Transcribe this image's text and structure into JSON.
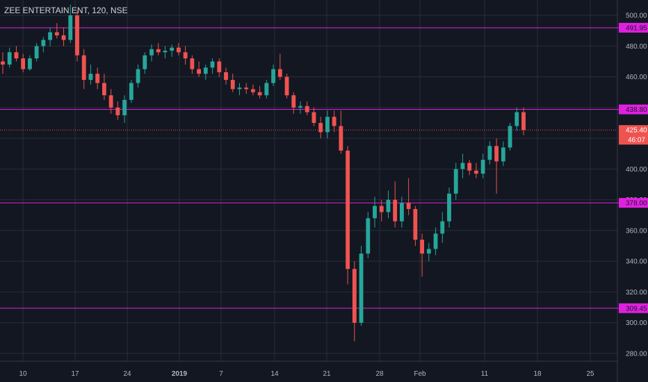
{
  "header": {
    "symbol_line": "ZEE ENTERTAIN ENT, 120, NSE"
  },
  "colors": {
    "background": "#131722",
    "grid": "#2a2e39",
    "up": "#26a69a",
    "down": "#ef5350",
    "level_line": "#e020e0",
    "price_tag_bg": "#ef5350",
    "level_tag_bg": "#e020e0",
    "axis_text": "#b2b5be"
  },
  "chart_data": {
    "type": "candlestick",
    "title": "ZEE ENTERTAIN ENT, 120, NSE",
    "ylim": [
      275,
      510
    ],
    "y_ticks": [
      "280.00",
      "300.00",
      "320.00",
      "340.00",
      "360.00",
      "380.00",
      "400.00",
      "420.00",
      "440.00",
      "460.00",
      "480.00",
      "500.00"
    ],
    "x_ticks": [
      "10",
      "17",
      "24",
      "2019",
      "7",
      "14",
      "21",
      "28",
      "Feb",
      "11",
      "18",
      "25"
    ],
    "levels": [
      {
        "label": "491.95",
        "value": 491.95
      },
      {
        "label": "438.80",
        "value": 438.8
      },
      {
        "label": "378.00",
        "value": 378.0
      },
      {
        "label": "309.45",
        "value": 309.45
      }
    ],
    "last_price": {
      "label": "425.40",
      "value": 425.4
    },
    "countdown_label": "46:07",
    "candles": [
      {
        "x": "Dec 7",
        "open": 470,
        "high": 476,
        "low": 462,
        "close": 468
      },
      {
        "x": "Dec 8",
        "open": 468,
        "high": 479,
        "low": 466,
        "close": 476
      },
      {
        "x": "Dec 9",
        "open": 476,
        "high": 480,
        "low": 470,
        "close": 472
      },
      {
        "x": "Dec 10",
        "open": 472,
        "high": 475,
        "low": 463,
        "close": 465
      },
      {
        "x": "Dec 11",
        "open": 465,
        "high": 474,
        "low": 464,
        "close": 472
      },
      {
        "x": "Dec 12",
        "open": 472,
        "high": 482,
        "low": 470,
        "close": 480
      },
      {
        "x": "Dec 13",
        "open": 480,
        "high": 486,
        "low": 476,
        "close": 484
      },
      {
        "x": "Dec 14",
        "open": 484,
        "high": 492,
        "low": 480,
        "close": 489
      },
      {
        "x": "Dec 15",
        "open": 489,
        "high": 495,
        "low": 485,
        "close": 487
      },
      {
        "x": "Dec 16",
        "open": 487,
        "high": 492,
        "low": 480,
        "close": 484
      },
      {
        "x": "Dec 17",
        "open": 484,
        "high": 507,
        "low": 482,
        "close": 500
      },
      {
        "x": "Dec 18",
        "open": 500,
        "high": 503,
        "low": 470,
        "close": 474
      },
      {
        "x": "Dec 19",
        "open": 474,
        "high": 478,
        "low": 452,
        "close": 458
      },
      {
        "x": "Dec 20",
        "open": 458,
        "high": 468,
        "low": 455,
        "close": 462
      },
      {
        "x": "Dec 21",
        "open": 462,
        "high": 466,
        "low": 452,
        "close": 456
      },
      {
        "x": "Dec 22",
        "open": 456,
        "high": 462,
        "low": 445,
        "close": 448
      },
      {
        "x": "Dec 23",
        "open": 448,
        "high": 452,
        "low": 436,
        "close": 440
      },
      {
        "x": "Dec 24",
        "open": 440,
        "high": 444,
        "low": 432,
        "close": 435
      },
      {
        "x": "Dec 25",
        "open": 435,
        "high": 448,
        "low": 430,
        "close": 445
      },
      {
        "x": "Dec 26",
        "open": 445,
        "high": 458,
        "low": 443,
        "close": 456
      },
      {
        "x": "Dec 27",
        "open": 456,
        "high": 468,
        "low": 453,
        "close": 465
      },
      {
        "x": "Dec 28",
        "open": 465,
        "high": 476,
        "low": 462,
        "close": 474
      },
      {
        "x": "Dec 29",
        "open": 474,
        "high": 481,
        "low": 470,
        "close": 478
      },
      {
        "x": "Dec 30",
        "open": 478,
        "high": 482,
        "low": 474,
        "close": 476
      },
      {
        "x": "Dec 31",
        "open": 476,
        "high": 480,
        "low": 472,
        "close": 477
      },
      {
        "x": "Jan 1",
        "open": 477,
        "high": 481,
        "low": 473,
        "close": 479
      },
      {
        "x": "Jan 2",
        "open": 479,
        "high": 482,
        "low": 474,
        "close": 476
      },
      {
        "x": "Jan 3",
        "open": 476,
        "high": 480,
        "low": 468,
        "close": 472
      },
      {
        "x": "Jan 4",
        "open": 472,
        "high": 474,
        "low": 462,
        "close": 465
      },
      {
        "x": "Jan 5",
        "open": 465,
        "high": 470,
        "low": 460,
        "close": 462
      },
      {
        "x": "Jan 6",
        "open": 462,
        "high": 468,
        "low": 458,
        "close": 466
      },
      {
        "x": "Jan 7",
        "open": 466,
        "high": 472,
        "low": 462,
        "close": 470
      },
      {
        "x": "Jan 8",
        "open": 470,
        "high": 472,
        "low": 460,
        "close": 463
      },
      {
        "x": "Jan 9",
        "open": 463,
        "high": 466,
        "low": 455,
        "close": 458
      },
      {
        "x": "Jan 10",
        "open": 458,
        "high": 462,
        "low": 450,
        "close": 452
      },
      {
        "x": "Jan 11",
        "open": 452,
        "high": 456,
        "low": 448,
        "close": 453
      },
      {
        "x": "Jan 12",
        "open": 453,
        "high": 456,
        "low": 449,
        "close": 452
      },
      {
        "x": "Jan 13",
        "open": 452,
        "high": 455,
        "low": 448,
        "close": 450
      },
      {
        "x": "Jan 14",
        "open": 450,
        "high": 454,
        "low": 446,
        "close": 448
      },
      {
        "x": "Jan 15",
        "open": 448,
        "high": 458,
        "low": 446,
        "close": 456
      },
      {
        "x": "Jan 16",
        "open": 456,
        "high": 468,
        "low": 454,
        "close": 465
      },
      {
        "x": "Jan 17",
        "open": 465,
        "high": 475,
        "low": 458,
        "close": 460
      },
      {
        "x": "Jan 18",
        "open": 460,
        "high": 462,
        "low": 446,
        "close": 448
      },
      {
        "x": "Jan 19",
        "open": 448,
        "high": 450,
        "low": 436,
        "close": 440
      },
      {
        "x": "Jan 20",
        "open": 440,
        "high": 444,
        "low": 436,
        "close": 441
      },
      {
        "x": "Jan 21",
        "open": 441,
        "high": 444,
        "low": 435,
        "close": 437
      },
      {
        "x": "Jan 22",
        "open": 437,
        "high": 440,
        "low": 428,
        "close": 430
      },
      {
        "x": "Jan 23",
        "open": 430,
        "high": 434,
        "low": 420,
        "close": 424
      },
      {
        "x": "Jan 24",
        "open": 424,
        "high": 438,
        "low": 420,
        "close": 434
      },
      {
        "x": "Jan 25",
        "open": 434,
        "high": 438,
        "low": 424,
        "close": 428
      },
      {
        "x": "Jan 26",
        "open": 428,
        "high": 438,
        "low": 410,
        "close": 412
      },
      {
        "x": "Jan 27",
        "open": 412,
        "high": 415,
        "low": 325,
        "close": 335
      },
      {
        "x": "Jan 28",
        "open": 335,
        "high": 340,
        "low": 288,
        "close": 300
      },
      {
        "x": "Jan 29",
        "open": 300,
        "high": 350,
        "low": 298,
        "close": 345
      },
      {
        "x": "Jan 30",
        "open": 345,
        "high": 372,
        "low": 342,
        "close": 368
      },
      {
        "x": "Jan 31",
        "open": 368,
        "high": 382,
        "low": 362,
        "close": 376
      },
      {
        "x": "Feb 1",
        "open": 376,
        "high": 380,
        "low": 366,
        "close": 372
      },
      {
        "x": "Feb 2",
        "open": 372,
        "high": 386,
        "low": 368,
        "close": 380
      },
      {
        "x": "Feb 3",
        "open": 380,
        "high": 392,
        "low": 362,
        "close": 366
      },
      {
        "x": "Feb 4",
        "open": 366,
        "high": 382,
        "low": 362,
        "close": 378
      },
      {
        "x": "Feb 5",
        "open": 378,
        "high": 394,
        "low": 370,
        "close": 374
      },
      {
        "x": "Feb 6",
        "open": 374,
        "high": 376,
        "low": 350,
        "close": 354
      },
      {
        "x": "Feb 7",
        "open": 354,
        "high": 358,
        "low": 330,
        "close": 345
      },
      {
        "x": "Feb 8",
        "open": 345,
        "high": 352,
        "low": 340,
        "close": 348
      },
      {
        "x": "Feb 9",
        "open": 348,
        "high": 362,
        "low": 344,
        "close": 358
      },
      {
        "x": "Feb 10",
        "open": 358,
        "high": 372,
        "low": 352,
        "close": 366
      },
      {
        "x": "Feb 11",
        "open": 366,
        "high": 388,
        "low": 362,
        "close": 384
      },
      {
        "x": "Feb 12",
        "open": 384,
        "high": 404,
        "low": 380,
        "close": 400
      },
      {
        "x": "Feb 13",
        "open": 400,
        "high": 410,
        "low": 394,
        "close": 404
      },
      {
        "x": "Feb 14",
        "open": 404,
        "high": 406,
        "low": 396,
        "close": 399
      },
      {
        "x": "Feb 15",
        "open": 399,
        "high": 404,
        "low": 394,
        "close": 397
      },
      {
        "x": "Feb 16",
        "open": 397,
        "high": 410,
        "low": 394,
        "close": 406
      },
      {
        "x": "Feb 17",
        "open": 406,
        "high": 418,
        "low": 403,
        "close": 415
      },
      {
        "x": "Feb 18",
        "open": 415,
        "high": 420,
        "low": 384,
        "close": 405
      },
      {
        "x": "Feb 19",
        "open": 405,
        "high": 418,
        "low": 402,
        "close": 414
      },
      {
        "x": "Feb 20",
        "open": 414,
        "high": 430,
        "low": 412,
        "close": 428
      },
      {
        "x": "Feb 21",
        "open": 428,
        "high": 440,
        "low": 425,
        "close": 437
      },
      {
        "x": "Feb 22",
        "open": 437,
        "high": 440,
        "low": 422,
        "close": 425.4
      }
    ]
  }
}
